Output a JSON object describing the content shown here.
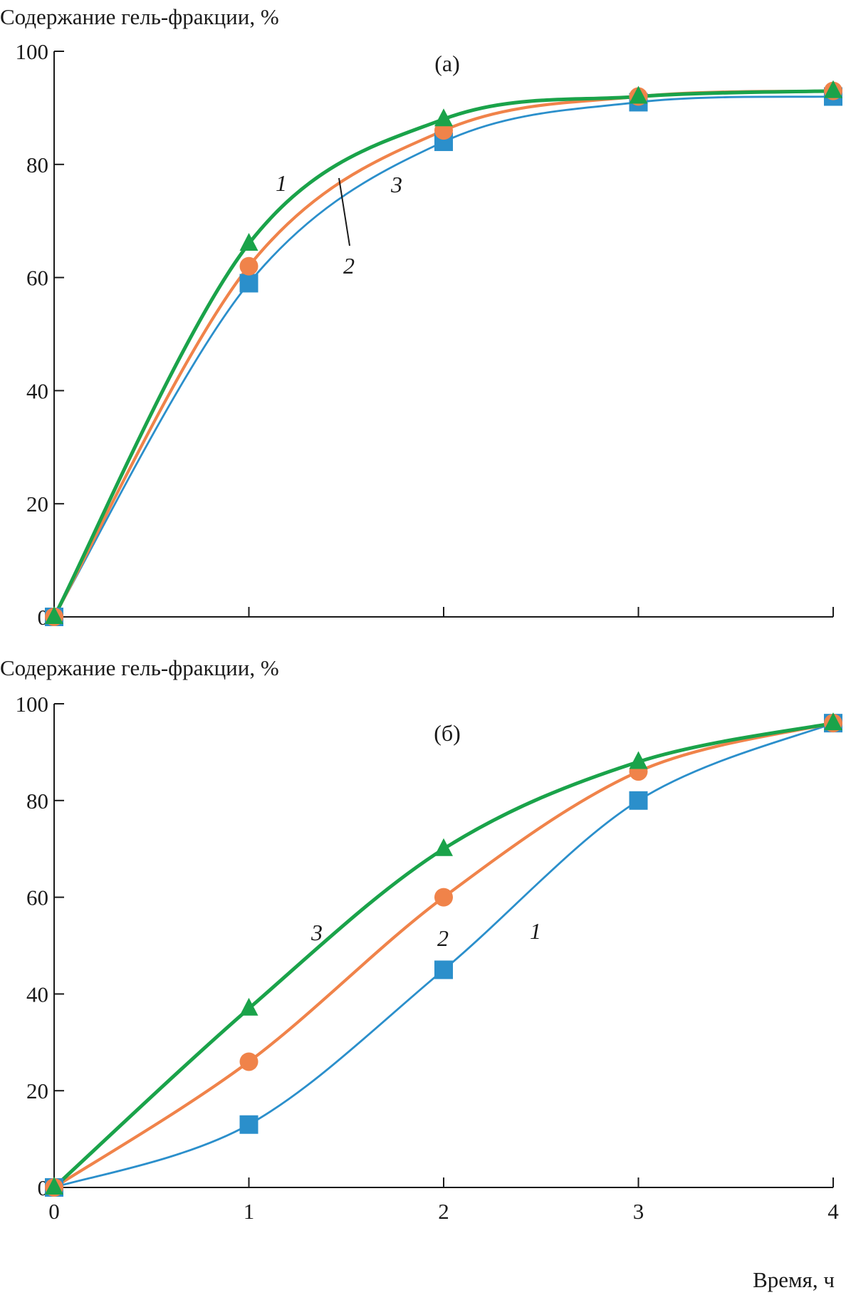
{
  "chart_data": [
    {
      "type": "line",
      "panel": "(а)",
      "ylabel": "Содержание гель-фракции, %",
      "xlabel": "",
      "x": [
        0,
        1,
        2,
        3,
        4
      ],
      "xlim": [
        0,
        4
      ],
      "ylim": [
        0,
        100
      ],
      "yticks": [
        0,
        20,
        40,
        60,
        80,
        100
      ],
      "xticks": [],
      "series": [
        {
          "name": "1",
          "marker": "triangle",
          "color": "#1aa34a",
          "values": [
            0,
            66,
            88,
            92,
            93
          ]
        },
        {
          "name": "2",
          "marker": "circle",
          "color": "#f0834a",
          "values": [
            0,
            62,
            86,
            92,
            93
          ]
        },
        {
          "name": "3",
          "marker": "square",
          "color": "#2b8fcb",
          "values": [
            0,
            59,
            84,
            91,
            92
          ]
        }
      ]
    },
    {
      "type": "line",
      "panel": "(б)",
      "ylabel": "Содержание гель-фракции, %",
      "xlabel": "Время, ч",
      "x": [
        0,
        1,
        2,
        3,
        4
      ],
      "xlim": [
        0,
        4
      ],
      "ylim": [
        0,
        100
      ],
      "yticks": [
        0,
        20,
        40,
        60,
        80,
        100
      ],
      "xticks": [
        0,
        1,
        2,
        3,
        4
      ],
      "series": [
        {
          "name": "3",
          "marker": "triangle",
          "color": "#1aa34a",
          "values": [
            0,
            37,
            70,
            88,
            96
          ]
        },
        {
          "name": "2",
          "marker": "circle",
          "color": "#f0834a",
          "values": [
            0,
            26,
            60,
            86,
            96
          ]
        },
        {
          "name": "1",
          "marker": "square",
          "color": "#2b8fcb",
          "values": [
            0,
            13,
            45,
            80,
            96
          ]
        }
      ]
    }
  ]
}
